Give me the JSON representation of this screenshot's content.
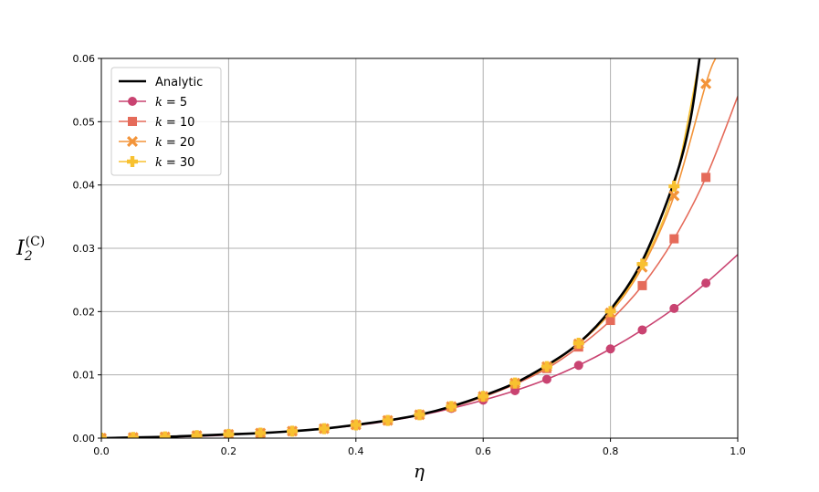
{
  "chart_data": {
    "type": "line",
    "xlabel": "η",
    "ylabel": {
      "main": "I",
      "sub": "2",
      "sup": "(C)"
    },
    "xlim": [
      0.0,
      1.0
    ],
    "ylim": [
      0.0,
      0.06
    ],
    "xticks": [
      0.0,
      0.2,
      0.4,
      0.6,
      0.8,
      1.0
    ],
    "xtick_labels": [
      "0.0",
      "0.2",
      "0.4",
      "0.6",
      "0.8",
      "1.0"
    ],
    "yticks": [
      0.0,
      0.01,
      0.02,
      0.03,
      0.04,
      0.05,
      0.06
    ],
    "ytick_labels": [
      "0.00",
      "0.01",
      "0.02",
      "0.03",
      "0.04",
      "0.05",
      "0.06"
    ],
    "grid": true,
    "legend_position": "top-left",
    "analytic": {
      "name": "Analytic",
      "color": "#000000",
      "x": [
        0.0,
        0.05,
        0.1,
        0.15,
        0.2,
        0.25,
        0.3,
        0.35,
        0.4,
        0.45,
        0.5,
        0.55,
        0.6,
        0.65,
        0.7,
        0.75,
        0.8,
        0.85,
        0.9,
        0.925,
        0.94
      ],
      "y": [
        0.0,
        0.0001,
        0.0002,
        0.0004,
        0.0006,
        0.0008,
        0.0011,
        0.0015,
        0.0021,
        0.0028,
        0.0037,
        0.005,
        0.0067,
        0.0087,
        0.0115,
        0.015,
        0.0203,
        0.028,
        0.0405,
        0.05,
        0.06
      ]
    },
    "series": [
      {
        "name": "k = 5",
        "legend_var": "k",
        "legend_value": "= 5",
        "color": "#c94371",
        "marker": "circle",
        "x": [
          0.0,
          0.05,
          0.1,
          0.15,
          0.2,
          0.25,
          0.3,
          0.35,
          0.4,
          0.45,
          0.5,
          0.55,
          0.6,
          0.65,
          0.7,
          0.75,
          0.8,
          0.85,
          0.9,
          0.95
        ],
        "y": [
          0.0,
          0.0001,
          0.0002,
          0.0003,
          0.0005,
          0.0008,
          0.0011,
          0.0015,
          0.002,
          0.0027,
          0.0036,
          0.0047,
          0.006,
          0.0075,
          0.0093,
          0.0115,
          0.0141,
          0.0171,
          0.0205,
          0.0245
        ],
        "line_end": [
          1.0,
          0.029
        ]
      },
      {
        "name": "k = 10",
        "legend_var": "k",
        "legend_value": "= 10",
        "color": "#e56b5a",
        "marker": "square",
        "x": [
          0.0,
          0.05,
          0.1,
          0.15,
          0.2,
          0.25,
          0.3,
          0.35,
          0.4,
          0.45,
          0.5,
          0.55,
          0.6,
          0.65,
          0.7,
          0.75,
          0.8,
          0.85,
          0.9,
          0.95
        ],
        "y": [
          0.0,
          0.0001,
          0.0002,
          0.0004,
          0.0006,
          0.0008,
          0.0011,
          0.0015,
          0.0021,
          0.0028,
          0.0037,
          0.0049,
          0.0065,
          0.0085,
          0.011,
          0.0144,
          0.0186,
          0.0241,
          0.0315,
          0.0412
        ],
        "line_end": [
          1.0,
          0.054
        ]
      },
      {
        "name": "k = 20",
        "legend_var": "k",
        "legend_value": "= 20",
        "color": "#f39439",
        "marker": "x",
        "x": [
          0.0,
          0.05,
          0.1,
          0.15,
          0.2,
          0.25,
          0.3,
          0.35,
          0.4,
          0.45,
          0.5,
          0.55,
          0.6,
          0.65,
          0.7,
          0.75,
          0.8,
          0.85,
          0.9,
          0.95
        ],
        "y": [
          0.0,
          0.0001,
          0.0002,
          0.0004,
          0.0006,
          0.0008,
          0.0011,
          0.0015,
          0.0021,
          0.0028,
          0.0037,
          0.005,
          0.0066,
          0.0087,
          0.0113,
          0.0149,
          0.0198,
          0.027,
          0.0383,
          0.056
        ],
        "line_end": [
          0.965,
          0.06
        ]
      },
      {
        "name": "k = 30",
        "legend_var": "k",
        "legend_value": "= 30",
        "color": "#f8c130",
        "marker": "plus",
        "x": [
          0.0,
          0.05,
          0.1,
          0.15,
          0.2,
          0.25,
          0.3,
          0.35,
          0.4,
          0.45,
          0.5,
          0.55,
          0.6,
          0.65,
          0.7,
          0.75,
          0.8,
          0.85,
          0.9,
          0.95
        ],
        "y": [
          0.0,
          0.0001,
          0.0002,
          0.0004,
          0.0006,
          0.0008,
          0.0011,
          0.0015,
          0.0021,
          0.0028,
          0.0037,
          0.005,
          0.0066,
          0.0087,
          0.0113,
          0.015,
          0.02,
          0.0275,
          0.0398,
          0.065
        ],
        "line_end": [
          0.95,
          0.06
        ]
      }
    ]
  }
}
